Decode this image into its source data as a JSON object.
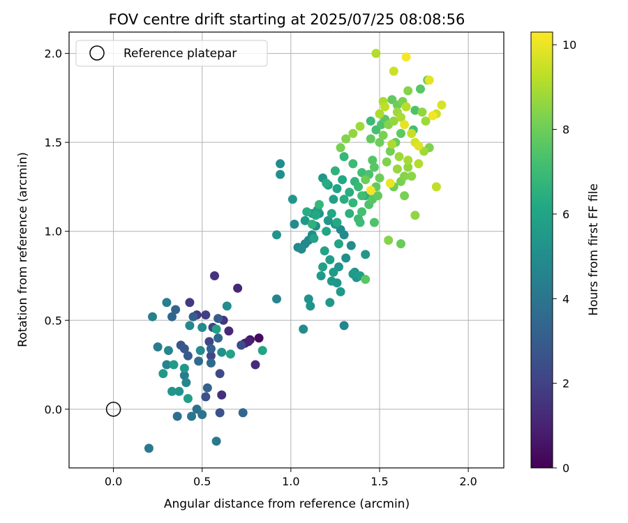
{
  "chart_data": {
    "type": "scatter",
    "title": "FOV centre drift starting at 2025/07/25 08:08:56",
    "xlabel": "Angular distance from reference (arcmin)",
    "ylabel": "Rotation from reference (arcmin)",
    "xlim": [
      -0.25,
      2.2
    ],
    "ylim": [
      -0.33,
      2.12
    ],
    "xticks": [
      "0.0",
      "0.5",
      "1.0",
      "1.5",
      "2.0"
    ],
    "yticks": [
      "0.0",
      "0.5",
      "1.0",
      "1.5",
      "2.0"
    ],
    "xtick_values": [
      0,
      0.5,
      1.0,
      1.5,
      2.0
    ],
    "ytick_values": [
      0,
      0.5,
      1.0,
      1.5,
      2.0
    ],
    "grid": true,
    "legend_position": "top-left",
    "legend": [
      {
        "label": "Reference platepar",
        "marker": "open-circle",
        "x": 0,
        "y": 0
      }
    ],
    "colorbar": {
      "label": "Hours from first FF file",
      "colormap": "viridis",
      "min": 0,
      "max": 10.3,
      "ticks": [
        "0",
        "2",
        "4",
        "6",
        "8",
        "10"
      ],
      "tick_values": [
        0,
        2,
        4,
        6,
        8,
        10
      ]
    },
    "series": [
      {
        "points": [
          [
            0.82,
            0.4,
            0.3
          ],
          [
            0.77,
            0.39,
            0.6
          ],
          [
            0.74,
            0.37,
            0.9
          ],
          [
            0.76,
            0.38,
            1.0
          ],
          [
            0.7,
            0.68,
            1.1
          ],
          [
            0.65,
            0.44,
            1.2
          ],
          [
            0.8,
            0.25,
            1.3
          ],
          [
            0.61,
            0.08,
            1.4
          ],
          [
            0.57,
            0.75,
            1.5
          ],
          [
            0.62,
            0.5,
            1.6
          ],
          [
            0.43,
            0.6,
            1.7
          ],
          [
            0.47,
            0.53,
            1.8
          ],
          [
            0.52,
            0.53,
            1.9
          ],
          [
            0.56,
            0.46,
            2.0
          ],
          [
            0.54,
            0.38,
            2.1
          ],
          [
            0.55,
            0.3,
            2.2
          ],
          [
            0.6,
            0.2,
            2.3
          ],
          [
            0.72,
            0.36,
            2.4
          ],
          [
            0.52,
            0.07,
            2.5
          ],
          [
            0.6,
            -0.02,
            2.6
          ],
          [
            0.38,
            0.36,
            2.7
          ],
          [
            0.4,
            0.34,
            2.8
          ],
          [
            0.42,
            0.3,
            2.9
          ],
          [
            0.59,
            0.51,
            3.0
          ],
          [
            0.55,
            0.34,
            3.1
          ],
          [
            0.53,
            0.12,
            3.2
          ],
          [
            0.35,
            0.56,
            3.3
          ],
          [
            0.33,
            0.52,
            3.4
          ],
          [
            0.59,
            0.4,
            3.5
          ],
          [
            0.48,
            0.27,
            3.6
          ],
          [
            0.36,
            -0.04,
            3.7
          ],
          [
            0.47,
            0.0,
            3.8
          ],
          [
            0.5,
            -0.03,
            3.9
          ],
          [
            0.44,
            -0.04,
            4.0
          ],
          [
            0.58,
            -0.18,
            4.1
          ],
          [
            0.2,
            -0.22,
            4.2
          ],
          [
            0.25,
            0.35,
            4.3
          ],
          [
            0.3,
            0.6,
            4.4
          ],
          [
            0.22,
            0.52,
            4.5
          ],
          [
            0.3,
            0.25,
            4.6
          ],
          [
            0.41,
            0.15,
            4.7
          ],
          [
            0.43,
            0.47,
            4.8
          ],
          [
            0.49,
            0.33,
            4.9
          ],
          [
            0.64,
            0.58,
            5.0
          ],
          [
            0.61,
            0.32,
            5.1
          ],
          [
            0.37,
            0.1,
            5.2
          ],
          [
            0.33,
            0.1,
            5.3
          ],
          [
            0.4,
            0.23,
            5.4
          ],
          [
            0.28,
            0.2,
            5.5
          ],
          [
            0.34,
            0.25,
            5.6
          ],
          [
            0.42,
            0.06,
            5.7
          ],
          [
            0.58,
            0.45,
            5.8
          ],
          [
            0.66,
            0.31,
            5.9
          ],
          [
            0.84,
            0.33,
            6.0
          ],
          [
            0.5,
            0.46,
            4.9
          ],
          [
            0.31,
            0.33,
            4.7
          ],
          [
            0.4,
            0.19,
            4.3
          ],
          [
            0.55,
            0.26,
            3.6
          ],
          [
            0.45,
            0.52,
            3.1
          ],
          [
            0.73,
            -0.02,
            3.4
          ],
          [
            0.92,
            0.62,
            4.6
          ],
          [
            1.07,
            0.45,
            4.9
          ],
          [
            1.1,
            0.62,
            5.2
          ],
          [
            1.11,
            0.58,
            5.3
          ],
          [
            1.22,
            0.6,
            5.4
          ],
          [
            1.28,
            0.66,
            5.5
          ],
          [
            1.35,
            0.76,
            5.6
          ],
          [
            1.39,
            0.75,
            5.7
          ],
          [
            1.42,
            0.87,
            5.4
          ],
          [
            1.3,
            0.47,
            4.7
          ],
          [
            1.04,
            0.91,
            4.8
          ],
          [
            1.06,
            0.9,
            5.0
          ],
          [
            1.02,
            1.04,
            4.9
          ],
          [
            0.94,
            1.38,
            5.0
          ],
          [
            0.94,
            1.32,
            5.1
          ],
          [
            0.92,
            0.98,
            5.3
          ],
          [
            1.01,
            1.18,
            5.4
          ],
          [
            1.08,
            1.06,
            5.5
          ],
          [
            1.12,
            1.1,
            5.6
          ],
          [
            1.15,
            1.12,
            5.8
          ],
          [
            1.13,
            0.96,
            5.9
          ],
          [
            1.2,
            1.0,
            6.0
          ],
          [
            1.23,
            1.1,
            6.1
          ],
          [
            1.18,
            0.8,
            5.8
          ],
          [
            1.26,
            1.05,
            6.2
          ],
          [
            1.27,
            0.93,
            6.0
          ],
          [
            1.3,
            1.18,
            6.4
          ],
          [
            1.33,
            1.1,
            6.5
          ],
          [
            1.35,
            1.16,
            6.7
          ],
          [
            1.38,
            1.07,
            6.9
          ],
          [
            1.2,
            1.27,
            6.3
          ],
          [
            1.25,
            1.34,
            6.6
          ],
          [
            1.3,
            1.42,
            6.8
          ],
          [
            1.35,
            1.38,
            7.0
          ],
          [
            1.4,
            1.33,
            7.1
          ],
          [
            1.42,
            1.2,
            6.5
          ],
          [
            1.44,
            1.32,
            7.3
          ],
          [
            1.46,
            1.4,
            7.5
          ],
          [
            1.47,
            1.36,
            7.6
          ],
          [
            1.45,
            1.52,
            7.8
          ],
          [
            1.5,
            1.5,
            8.0
          ],
          [
            1.52,
            1.54,
            8.2
          ],
          [
            1.55,
            1.6,
            8.4
          ],
          [
            1.58,
            1.62,
            8.6
          ],
          [
            1.6,
            1.67,
            8.8
          ],
          [
            1.62,
            1.64,
            9.0
          ],
          [
            1.65,
            1.7,
            9.2
          ],
          [
            1.68,
            1.55,
            9.4
          ],
          [
            1.7,
            1.5,
            9.6
          ],
          [
            1.72,
            1.48,
            9.8
          ],
          [
            1.78,
            1.85,
            9.9
          ],
          [
            1.8,
            1.65,
            10.1
          ],
          [
            1.82,
            1.25,
            9.3
          ],
          [
            1.65,
            1.98,
            10.2
          ],
          [
            1.48,
            2.0,
            9.1
          ],
          [
            1.58,
            1.9,
            9.5
          ],
          [
            1.52,
            1.73,
            9.0
          ],
          [
            1.56,
            1.27,
            10.0
          ],
          [
            1.45,
            1.23,
            10.2
          ],
          [
            1.47,
            1.05,
            7.4
          ],
          [
            1.42,
            0.73,
            7.6
          ],
          [
            1.55,
            0.95,
            8.4
          ],
          [
            1.62,
            0.93,
            7.9
          ],
          [
            1.7,
            1.09,
            8.6
          ],
          [
            1.64,
            1.2,
            8.2
          ],
          [
            1.6,
            1.35,
            8.7
          ],
          [
            1.66,
            1.4,
            8.9
          ],
          [
            1.72,
            1.38,
            9.1
          ],
          [
            1.75,
            1.45,
            8.8
          ],
          [
            1.68,
            1.31,
            8.5
          ],
          [
            1.78,
            1.47,
            8.3
          ],
          [
            1.77,
            1.85,
            7.8
          ],
          [
            1.73,
            1.8,
            7.6
          ],
          [
            1.7,
            1.68,
            7.4
          ],
          [
            1.69,
            1.57,
            7.2
          ],
          [
            1.62,
            1.55,
            7.7
          ],
          [
            1.59,
            1.5,
            7.9
          ],
          [
            1.56,
            1.45,
            8.1
          ],
          [
            1.54,
            1.39,
            8.3
          ],
          [
            1.5,
            1.3,
            8.0
          ],
          [
            1.48,
            1.25,
            7.8
          ],
          [
            1.4,
            1.2,
            7.1
          ],
          [
            1.38,
            1.25,
            6.9
          ],
          [
            1.36,
            1.28,
            6.7
          ],
          [
            1.33,
            1.22,
            6.4
          ],
          [
            1.29,
            1.29,
            6.2
          ],
          [
            1.26,
            1.24,
            6.0
          ],
          [
            1.24,
            1.18,
            5.8
          ],
          [
            1.21,
            1.26,
            5.6
          ],
          [
            1.18,
            1.3,
            5.4
          ],
          [
            1.16,
            1.1,
            5.2
          ],
          [
            1.14,
            1.03,
            5.0
          ],
          [
            1.12,
            0.98,
            4.9
          ],
          [
            1.1,
            0.95,
            4.8
          ],
          [
            1.08,
            0.93,
            4.7
          ],
          [
            1.19,
            0.89,
            5.9
          ],
          [
            1.22,
            0.84,
            5.7
          ],
          [
            1.24,
            0.77,
            5.5
          ],
          [
            1.27,
            0.8,
            5.3
          ],
          [
            1.31,
            0.85,
            5.1
          ],
          [
            1.34,
            0.92,
            5.0
          ],
          [
            1.3,
            0.98,
            4.9
          ],
          [
            1.28,
            1.01,
            4.8
          ],
          [
            1.25,
            1.04,
            5.2
          ],
          [
            1.21,
            1.06,
            5.4
          ],
          [
            1.45,
            1.62,
            7.0
          ],
          [
            1.48,
            1.57,
            7.2
          ],
          [
            1.51,
            1.6,
            7.4
          ],
          [
            1.53,
            1.63,
            7.6
          ],
          [
            1.57,
            1.74,
            7.8
          ],
          [
            1.6,
            1.71,
            8.0
          ],
          [
            1.63,
            1.73,
            8.2
          ],
          [
            1.66,
            1.79,
            8.4
          ],
          [
            1.74,
            1.67,
            8.6
          ],
          [
            1.76,
            1.62,
            8.8
          ],
          [
            1.85,
            1.71,
            9.7
          ],
          [
            1.82,
            1.66,
            9.5
          ],
          [
            1.64,
            1.6,
            9.9
          ],
          [
            1.53,
            1.7,
            9.3
          ],
          [
            1.5,
            1.66,
            9.0
          ],
          [
            1.39,
            1.59,
            8.8
          ],
          [
            1.35,
            1.55,
            8.6
          ],
          [
            1.31,
            1.52,
            8.4
          ],
          [
            1.28,
            1.47,
            8.2
          ],
          [
            1.42,
            1.29,
            8.0
          ],
          [
            1.14,
            1.09,
            6.2
          ],
          [
            1.09,
            1.11,
            6.4
          ],
          [
            1.12,
            1.04,
            6.6
          ],
          [
            1.16,
            1.15,
            6.8
          ],
          [
            1.39,
            1.05,
            7.0
          ],
          [
            1.4,
            1.11,
            7.2
          ],
          [
            1.44,
            1.15,
            7.4
          ],
          [
            1.46,
            1.18,
            7.6
          ],
          [
            1.49,
            1.2,
            7.8
          ],
          [
            1.58,
            1.25,
            8.0
          ],
          [
            1.62,
            1.28,
            8.2
          ],
          [
            1.64,
            1.31,
            8.4
          ],
          [
            1.66,
            1.36,
            8.6
          ],
          [
            1.61,
            1.42,
            8.8
          ],
          [
            1.57,
            1.49,
            9.0
          ],
          [
            1.17,
            0.75,
            5.6
          ],
          [
            1.23,
            0.72,
            5.5
          ],
          [
            1.26,
            0.71,
            5.4
          ],
          [
            1.36,
            0.77,
            5.3
          ],
          [
            1.37,
            0.74,
            5.2
          ]
        ]
      }
    ]
  }
}
